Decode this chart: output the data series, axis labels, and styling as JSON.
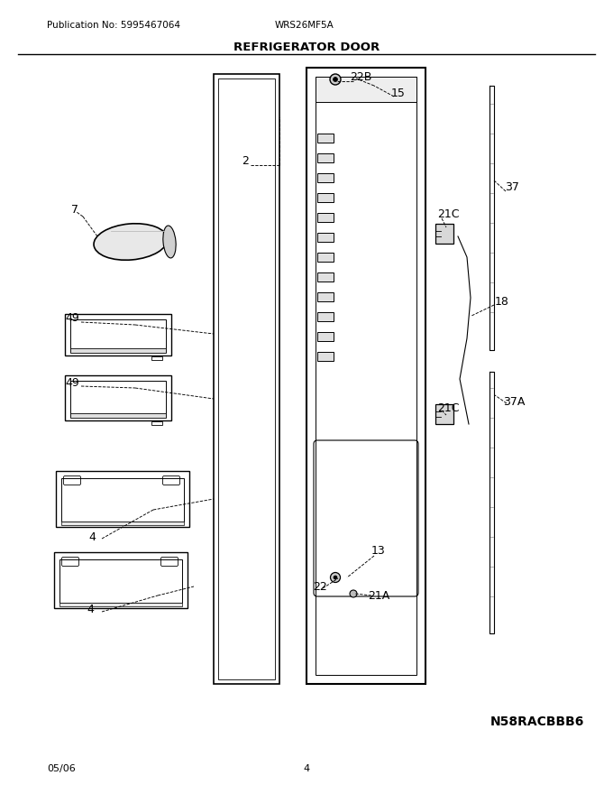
{
  "title": "REFRIGERATOR DOOR",
  "pub_no": "Publication No: 5995467064",
  "model": "WRS26MF5A",
  "date": "05/06",
  "page": "4",
  "catalog_code": "N58RACBBB6",
  "bg_color": "#ffffff",
  "lc": "#000000"
}
